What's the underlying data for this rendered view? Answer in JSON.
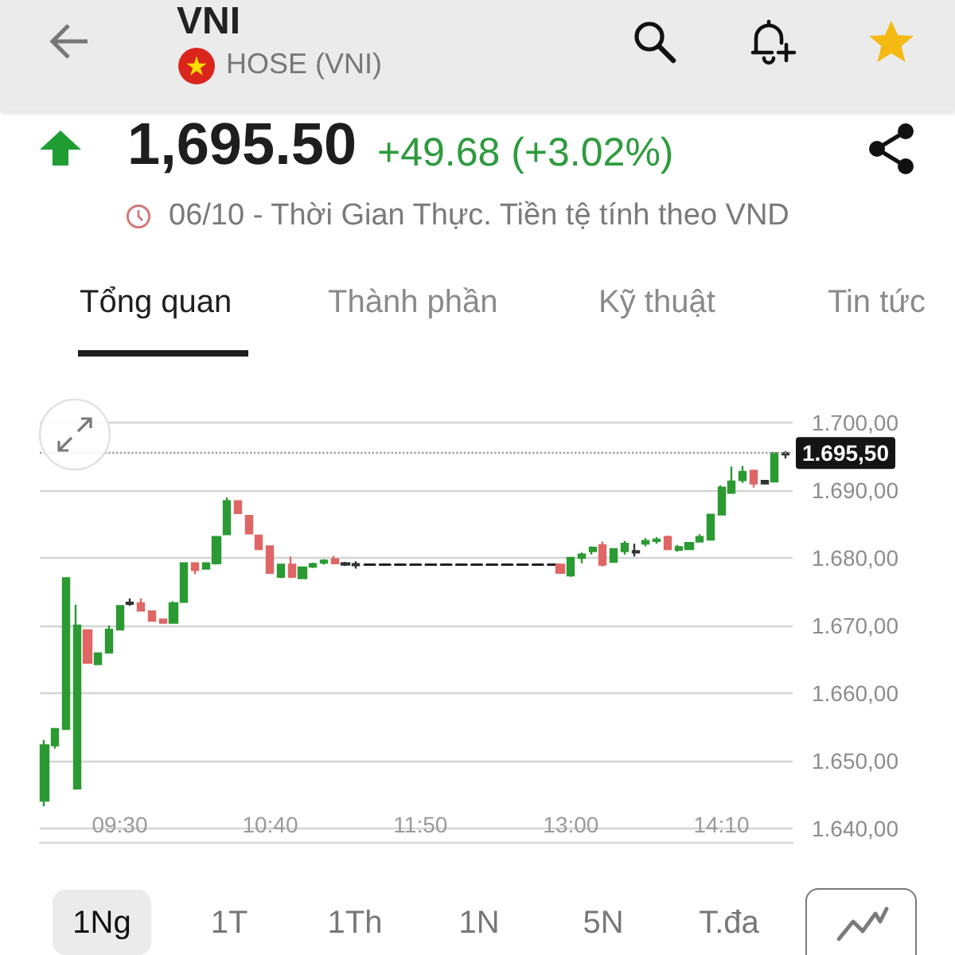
{
  "chart_data": {
    "type": "candlestick",
    "title": "VNI",
    "subtitle": "HOSE (VNI)",
    "annotations": [
      "1,695.50",
      "+49.68 (+3.02%)",
      "06/10 - Thời Gian Thực. Tiền tệ tính theo VND",
      "Tổng quan",
      "Thành phần",
      "Kỹ thuật",
      "Tin tức",
      "1Ng",
      "1T",
      "1Th",
      "1N",
      "5N",
      "T.đa"
    ],
    "series": [
      {
        "x": [
          8.917,
          9,
          9.083,
          9.167,
          9.25,
          9.333,
          9.417,
          9.5,
          9.583,
          9.667,
          9.75,
          9.833,
          9.917,
          10,
          10.083,
          10.167,
          10.25,
          10.333,
          10.417,
          10.5,
          10.583,
          10.667,
          10.75,
          10.833,
          10.917,
          11,
          11.083,
          11.167,
          11.25,
          11.333,
          12.917,
          13,
          13.083,
          13.167,
          13.25,
          13.333,
          13.417,
          13.5,
          13.583,
          13.667,
          13.75,
          13.833,
          13.917,
          14,
          14.083,
          14.167,
          14.25,
          14.333,
          14.417,
          14.5,
          14.583,
          14.667
        ],
        "ohlc": [
          [
            1644.1,
            1653.1,
            1643.3,
            1652.3
          ],
          [
            1652.3,
            1654.7,
            1651.8,
            1654.7
          ],
          [
            1654.7,
            1677.0,
            1654.7,
            1677.0
          ],
          [
            1645.9,
            1673.1,
            1645.9,
            1670.0
          ],
          [
            1669.3,
            1669.3,
            1664.5,
            1664.5
          ],
          [
            1664.3,
            1665.9,
            1664.3,
            1665.9
          ],
          [
            1666.0,
            1670.0,
            1666.0,
            1669.4
          ],
          [
            1669.4,
            1672.9,
            1669.4,
            1672.9
          ],
          [
            1673.2,
            1674.0,
            1672.9,
            1673.4
          ],
          [
            1673.3,
            1674.0,
            1672.2,
            1672.2
          ],
          [
            1672.1,
            1672.1,
            1670.7,
            1670.7
          ],
          [
            1670.9,
            1670.9,
            1670.4,
            1670.4
          ],
          [
            1670.4,
            1673.6,
            1670.4,
            1673.3
          ],
          [
            1673.5,
            1679.2,
            1673.5,
            1679.2
          ],
          [
            1679.2,
            1679.2,
            1677.6,
            1678.2
          ],
          [
            1678.4,
            1679.2,
            1678.4,
            1679.2
          ],
          [
            1679.2,
            1683.1,
            1679.0,
            1683.1
          ],
          [
            1683.5,
            1688.9,
            1683.5,
            1688.4
          ],
          [
            1688.4,
            1688.4,
            1686.6,
            1686.6
          ],
          [
            1686.2,
            1686.2,
            1683.6,
            1683.6
          ],
          [
            1683.3,
            1683.3,
            1681.3,
            1681.3
          ],
          [
            1681.7,
            1681.7,
            1677.8,
            1677.8
          ],
          [
            1677.2,
            1679.0,
            1677.0,
            1679.0
          ],
          [
            1679.0,
            1680.2,
            1677.0,
            1677.2
          ],
          [
            1677.0,
            1678.6,
            1677.0,
            1678.6
          ],
          [
            1678.7,
            1679.3,
            1678.5,
            1679.1
          ],
          [
            1679.3,
            1679.8,
            1679.0,
            1679.6
          ],
          [
            1679.8,
            1680.3,
            1679.2,
            1679.2
          ],
          [
            1679.0,
            1679.4,
            1678.8,
            1679.2
          ],
          [
            1678.9,
            1679.5,
            1678.4,
            1679.1
          ],
          [
            1679.0,
            1679.0,
            1677.8,
            1677.8
          ],
          [
            1677.4,
            1680.0,
            1677.2,
            1680.0
          ],
          [
            1680.0,
            1680.8,
            1679.2,
            1680.5
          ],
          [
            1681.0,
            1681.7,
            1680.5,
            1681.5
          ],
          [
            1681.9,
            1682.4,
            1678.7,
            1679.0
          ],
          [
            1679.4,
            1681.3,
            1679.4,
            1681.3
          ],
          [
            1681.0,
            1682.5,
            1680.5,
            1682.1
          ],
          [
            1680.8,
            1682.1,
            1680.2,
            1681.0
          ],
          [
            1682.1,
            1682.9,
            1681.7,
            1682.5
          ],
          [
            1682.5,
            1683.1,
            1682.1,
            1682.7
          ],
          [
            1683.1,
            1683.3,
            1681.3,
            1681.3
          ],
          [
            1681.2,
            1681.9,
            1680.9,
            1681.6
          ],
          [
            1681.3,
            1682.2,
            1681.3,
            1682.2
          ],
          [
            1682.4,
            1683.5,
            1682.4,
            1683.1
          ],
          [
            1682.7,
            1686.4,
            1682.7,
            1686.4
          ],
          [
            1686.4,
            1690.7,
            1686.4,
            1690.4
          ],
          [
            1689.6,
            1693.5,
            1689.6,
            1691.3
          ],
          [
            1691.5,
            1693.6,
            1691.1,
            1692.7
          ],
          [
            1692.9,
            1692.9,
            1690.4,
            1691.0
          ],
          [
            1691.0,
            1691.5,
            1690.9,
            1691.4
          ],
          [
            1691.3,
            1695.5,
            1691.3,
            1695.5
          ],
          [
            1695.3,
            1695.8,
            1694.7,
            1695.5
          ]
        ],
        "colors": [
          "#2b9a33",
          "#2b9a33",
          "#2b9a33",
          "#2b9a33",
          "#e06666",
          "#2b9a33",
          "#2b9a33",
          "#2b9a33",
          "#333333",
          "#e06666",
          "#e06666",
          "#e06666",
          "#2b9a33",
          "#2b9a33",
          "#e06666",
          "#2b9a33",
          "#2b9a33",
          "#2b9a33",
          "#e06666",
          "#e06666",
          "#e06666",
          "#e06666",
          "#2b9a33",
          "#e06666",
          "#2b9a33",
          "#2b9a33",
          "#2b9a33",
          "#e06666",
          "#333333",
          "#333333",
          "#e06666",
          "#2b9a33",
          "#2b9a33",
          "#2b9a33",
          "#e06666",
          "#2b9a33",
          "#2b9a33",
          "#333333",
          "#2b9a33",
          "#2b9a33",
          "#e06666",
          "#2b9a33",
          "#2b9a33",
          "#2b9a33",
          "#2b9a33",
          "#2b9a33",
          "#2b9a33",
          "#2b9a33",
          "#e06666",
          "#333333",
          "#2b9a33",
          "#333333"
        ]
      },
      {
        "type": "line",
        "x": [
          11.4,
          12.89
        ],
        "values": [
          1679,
          1679
        ],
        "color": "#222222",
        "line_style": "dashed"
      }
    ],
    "xlim": [
      8.88,
      14.72
    ],
    "xticks": [
      {
        "value": 9.5,
        "label": "09:30"
      },
      {
        "value": 10.667,
        "label": "10:40"
      },
      {
        "value": 11.833,
        "label": "11:50"
      },
      {
        "value": 13,
        "label": "13:00"
      },
      {
        "value": 14.167,
        "label": "14:10"
      }
    ],
    "ylim": [
      1638,
      1700
    ],
    "yticks": [
      {
        "value": 1640,
        "label": "1.640,00"
      },
      {
        "value": 1650,
        "label": "1.650,00"
      },
      {
        "value": 1660,
        "label": "1.660,00"
      },
      {
        "value": 1670,
        "label": "1.670,00"
      },
      {
        "value": 1680,
        "label": "1.680,00"
      },
      {
        "value": 1690,
        "label": "1.690,00"
      },
      {
        "value": 1700,
        "label": "1.700,00"
      }
    ],
    "grid": "y",
    "ref_lines": [
      {
        "axis": "y",
        "value": 1695.5,
        "label": "1.695,50",
        "line_style": "dotted",
        "color": "#9e9e9e"
      }
    ]
  }
}
